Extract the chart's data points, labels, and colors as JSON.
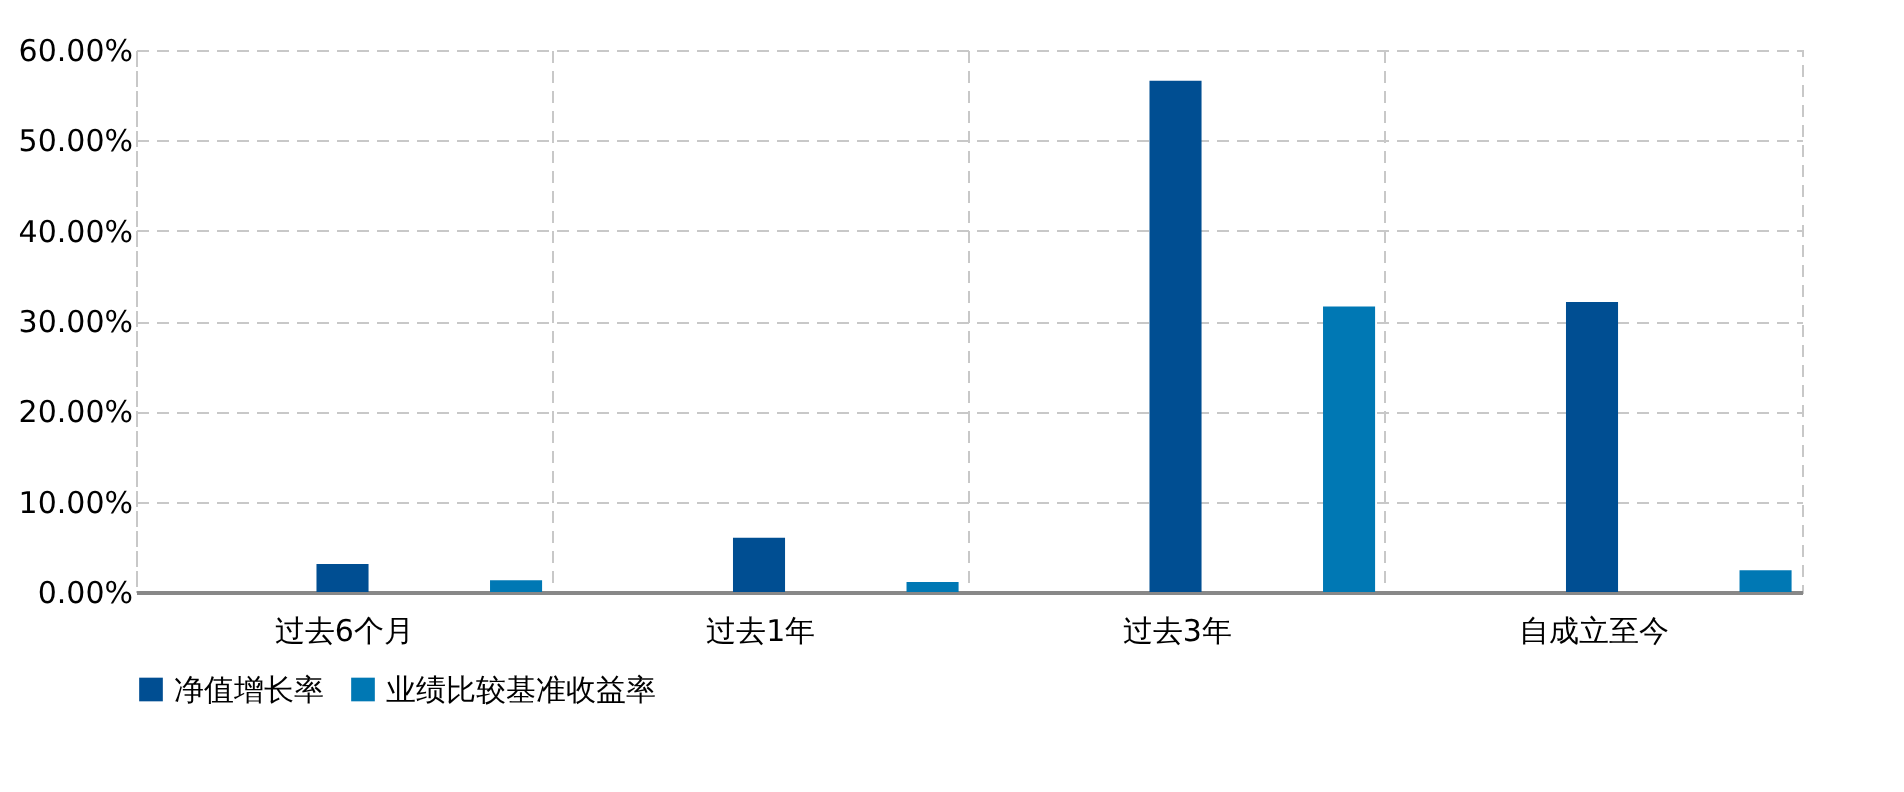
{
  "chart_data": {
    "type": "bar",
    "categories": [
      "过去6个月",
      "过去1年",
      "过去3年",
      "自成立至今"
    ],
    "series": [
      {
        "name": "净值增长率",
        "color": "#004e92",
        "values": [
          3.1,
          6.0,
          56.6,
          32.1
        ]
      },
      {
        "name": "业绩比较基准收益率",
        "color": "#0078b4",
        "values": [
          1.3,
          1.1,
          31.6,
          2.4
        ]
      }
    ],
    "ylim": [
      0,
      60
    ],
    "yticks": [
      {
        "value": 0,
        "label": "0.00%"
      },
      {
        "value": 10,
        "label": "10.00%"
      },
      {
        "value": 20,
        "label": "20.00%"
      },
      {
        "value": 30,
        "label": "30.00%"
      },
      {
        "value": 40,
        "label": "40.00%"
      },
      {
        "value": 50,
        "label": "50.00%"
      },
      {
        "value": 60,
        "label": "60.00%"
      }
    ],
    "grid": true,
    "legend": "bottom"
  }
}
